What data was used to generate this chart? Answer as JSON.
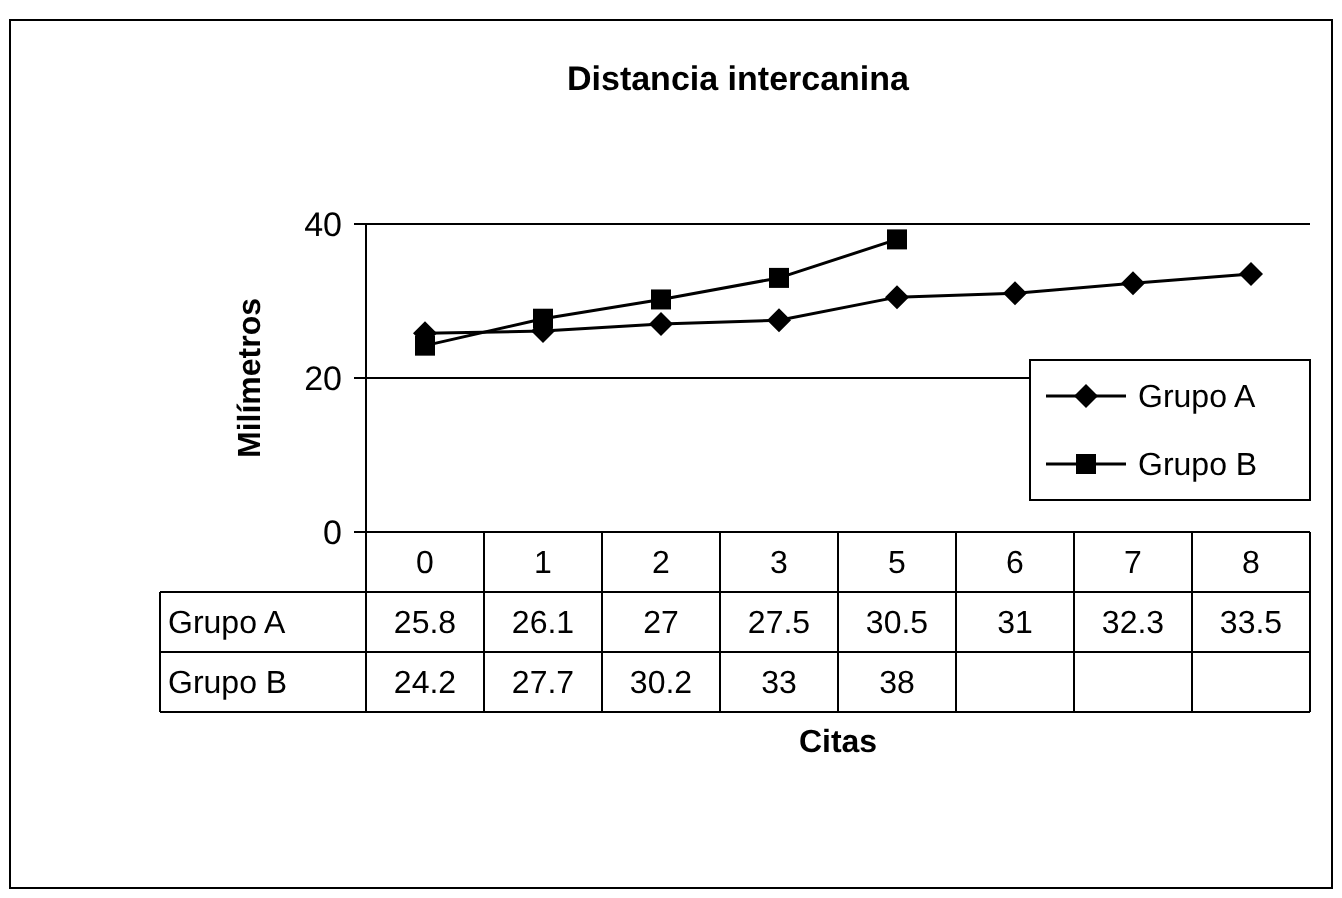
{
  "chart_data": {
    "type": "line",
    "title": "Distancia intercanina",
    "xlabel": "Citas",
    "ylabel": "Milímetros",
    "categories": [
      "0",
      "1",
      "2",
      "3",
      "5",
      "6",
      "7",
      "8"
    ],
    "series": [
      {
        "name": "Grupo A",
        "color": "#000000",
        "marker": "diamond",
        "values": [
          25.8,
          26.1,
          27,
          27.5,
          30.5,
          31,
          32.3,
          33.5
        ]
      },
      {
        "name": "Grupo B",
        "color": "#000000",
        "marker": "square",
        "values": [
          24.2,
          27.7,
          30.2,
          33,
          38,
          null,
          null,
          null
        ]
      }
    ],
    "ylim": [
      0,
      40
    ],
    "yticks": [
      0,
      20,
      40
    ],
    "grid": "y",
    "legend": "right",
    "data_labels": true,
    "line_style": "solid"
  }
}
